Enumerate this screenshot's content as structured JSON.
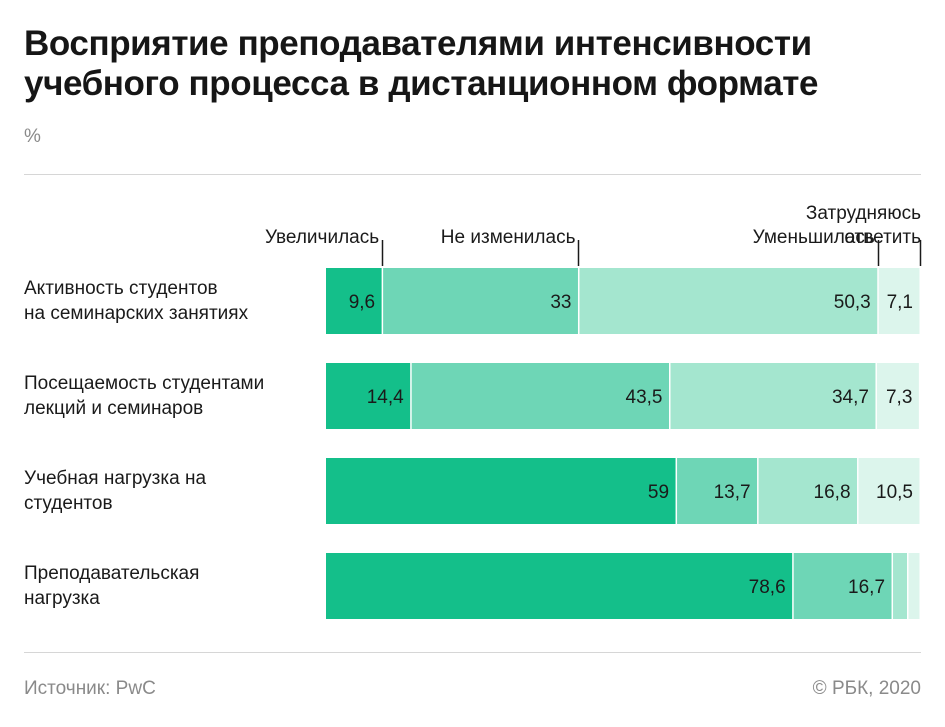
{
  "chart_data": {
    "type": "bar",
    "stacked": true,
    "orientation": "horizontal",
    "title": "Восприятие преподавателями интенсивности учебного процесса в дистанционном формате",
    "unit": "%",
    "categories": [
      "Активность студентов на семинарских занятиях",
      "Посещаемость студентами лекций и семинаров",
      "Учебная нагрузка на студентов",
      "Преподавательская нагрузка"
    ],
    "category_lines": [
      [
        "Активность студентов",
        "на семинарских занятиях"
      ],
      [
        "Посещаемость студентами",
        "лекций и семинаров"
      ],
      [
        "Учебная нагрузка на",
        "студентов"
      ],
      [
        "Преподавательская",
        "нагрузка"
      ]
    ],
    "series": [
      {
        "name": "Увеличилась",
        "legend_lines": [
          "Увеличилась"
        ],
        "color": "#14bf8a",
        "values": [
          9.6,
          14.4,
          59,
          78.6
        ],
        "labels": [
          "9,6",
          "14,4",
          "59",
          "78,6"
        ]
      },
      {
        "name": "Не изменилась",
        "legend_lines": [
          "Не изменилась"
        ],
        "color": "#6ed6b6",
        "values": [
          33,
          43.5,
          13.7,
          16.7
        ],
        "labels": [
          "33",
          "43,5",
          "13,7",
          "16,7"
        ]
      },
      {
        "name": "Уменьшилась",
        "legend_lines": [
          "Уменьшилась"
        ],
        "color": "#a4e6cf",
        "values": [
          50.3,
          34.7,
          16.8,
          2.6
        ],
        "labels": [
          "50,3",
          "34,7",
          "16,8",
          ""
        ]
      },
      {
        "name": "Затрудняюсь ответить",
        "legend_lines": [
          "Затрудняюсь",
          "ответить"
        ],
        "color": "#dcf5ec",
        "values": [
          7.1,
          7.3,
          10.5,
          2.1
        ],
        "labels": [
          "7,1",
          "7,3",
          "10,5",
          ""
        ]
      }
    ],
    "xlim": [
      0,
      100
    ],
    "grid": false,
    "legend_position": "top"
  },
  "footer": {
    "source": "Источник: PwC",
    "copyright": "© РБК, 2020"
  }
}
